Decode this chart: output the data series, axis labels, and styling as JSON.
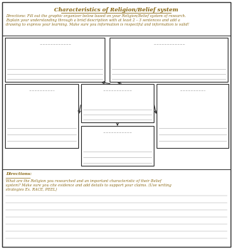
{
  "title": "Characteristics of Religion/Belief system",
  "title_color": "#8B6914",
  "directions_top": "Directions: Fill out the graphic organizer below based on your Religion/Belief system of research.\nExplain your understanding through a brief description with at least 2 – 3 sentences and add a\ndrawing to express your learning. Make sure you information is respectful and information is valid!",
  "directions_bottom_label": "Directions:",
  "directions_bottom": "What are the Religion you researched and an important characteristic of their Belief\nsystem? Make sure you cite evidence and add details to support your claims. (Use writing\nstrategies Ex. RACE, PEEL)",
  "text_color": "#8B6914",
  "line_color": "#aaaaaa",
  "box_border_color": "#333333",
  "background_color": "#ffffff",
  "num_writing_lines": 7
}
